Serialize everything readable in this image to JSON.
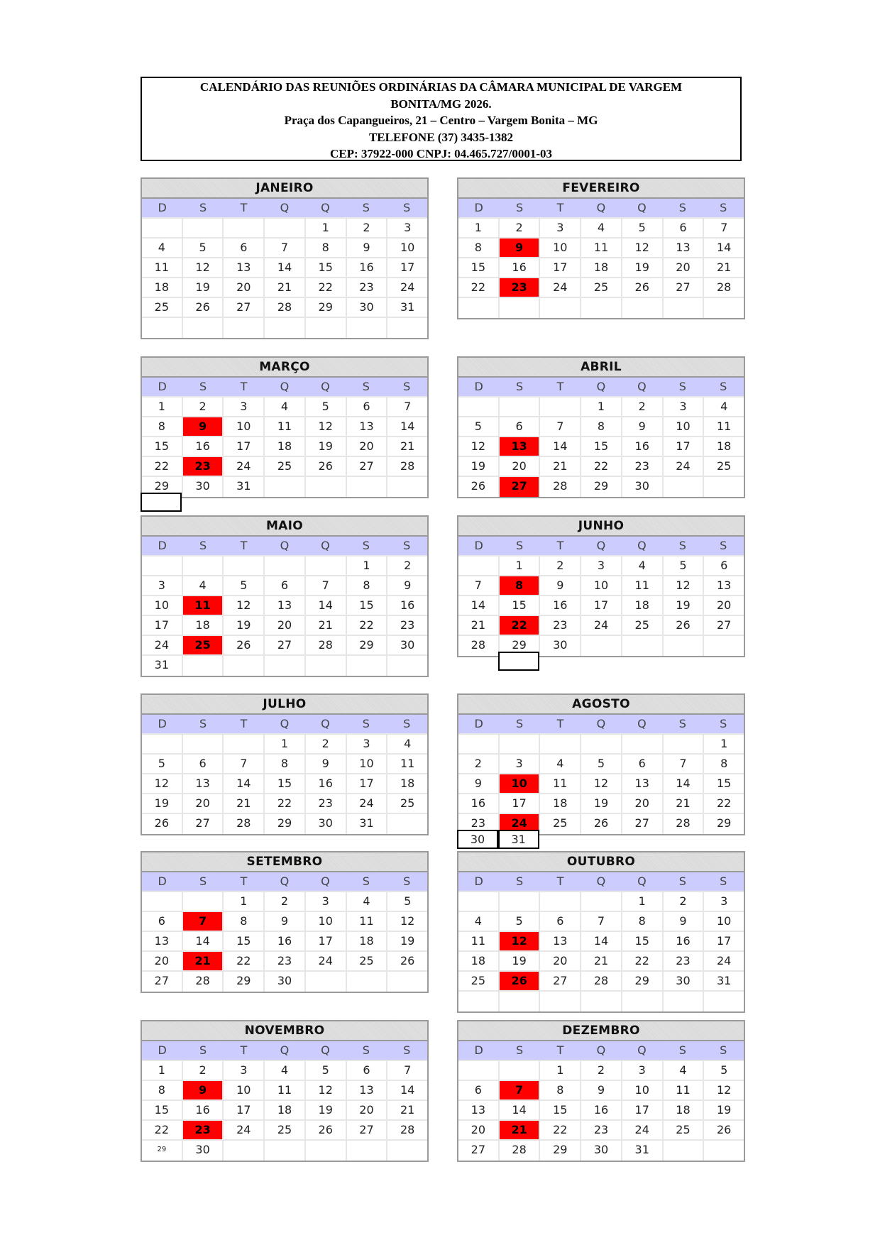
{
  "header": {
    "line1": "CALENDÁRIO DAS REUNIÕES ORDINÁRIAS DA CÂMARA MUNICIPAL DE VARGEM",
    "line2": "BONITA/MG 2026.",
    "line3": "Praça dos Capangueiros, 21 – Centro – Vargem Bonita – MG",
    "line4": "TELEFONE (37) 3435-1382",
    "line5": "CEP: 37922-000 CNPJ: 04.465.727/0001-03"
  },
  "weekdays": [
    "D",
    "S",
    "T",
    "Q",
    "Q",
    "S",
    "S"
  ],
  "colors": {
    "highlight": "#ff0000",
    "weekday_header": "#ccccff",
    "title_bg": "#dcdcdc"
  },
  "months": [
    {
      "name": "JANEIRO",
      "highlight": [],
      "weeks": [
        [
          "",
          "",
          "",
          "",
          "1",
          "2",
          "3"
        ],
        [
          "4",
          "5",
          "6",
          "7",
          "8",
          "9",
          "10"
        ],
        [
          "11",
          "12",
          "13",
          "14",
          "15",
          "16",
          "17"
        ],
        [
          "18",
          "19",
          "20",
          "21",
          "22",
          "23",
          "24"
        ],
        [
          "25",
          "26",
          "27",
          "28",
          "29",
          "30",
          "31"
        ],
        [
          "",
          "",
          "",
          "",
          "",
          "",
          ""
        ]
      ]
    },
    {
      "name": "FEVEREIRO",
      "highlight": [
        "9",
        "23"
      ],
      "weeks": [
        [
          "1",
          "2",
          "3",
          "4",
          "5",
          "6",
          "7"
        ],
        [
          "8",
          "9",
          "10",
          "11",
          "12",
          "13",
          "14"
        ],
        [
          "15",
          "16",
          "17",
          "18",
          "19",
          "20",
          "21"
        ],
        [
          "22",
          "23",
          "24",
          "25",
          "26",
          "27",
          "28"
        ],
        [
          "",
          "",
          "",
          "",
          "",
          "",
          ""
        ]
      ]
    },
    {
      "name": "MARÇO",
      "highlight": [
        "9",
        "23"
      ],
      "weeks": [
        [
          "1",
          "2",
          "3",
          "4",
          "5",
          "6",
          "7"
        ],
        [
          "8",
          "9",
          "10",
          "11",
          "12",
          "13",
          "14"
        ],
        [
          "15",
          "16",
          "17",
          "18",
          "19",
          "20",
          "21"
        ],
        [
          "22",
          "23",
          "24",
          "25",
          "26",
          "27",
          "28"
        ],
        [
          "29",
          "30",
          "31",
          "",
          "",
          "",
          ""
        ]
      ],
      "overflow": [
        {
          "col": 0,
          "text": ""
        }
      ]
    },
    {
      "name": "ABRIL",
      "highlight": [
        "13",
        "27"
      ],
      "weeks": [
        [
          "",
          "",
          "",
          "1",
          "2",
          "3",
          "4"
        ],
        [
          "5",
          "6",
          "7",
          "8",
          "9",
          "10",
          "11"
        ],
        [
          "12",
          "13",
          "14",
          "15",
          "16",
          "17",
          "18"
        ],
        [
          "19",
          "20",
          "21",
          "22",
          "23",
          "24",
          "25"
        ],
        [
          "26",
          "27",
          "28",
          "29",
          "30",
          "",
          ""
        ]
      ]
    },
    {
      "name": "MAIO",
      "highlight": [
        "11",
        "25"
      ],
      "weeks": [
        [
          "",
          "",
          "",
          "",
          "",
          "1",
          "2"
        ],
        [
          "3",
          "4",
          "5",
          "6",
          "7",
          "8",
          "9"
        ],
        [
          "10",
          "11",
          "12",
          "13",
          "14",
          "15",
          "16"
        ],
        [
          "17",
          "18",
          "19",
          "20",
          "21",
          "22",
          "23"
        ],
        [
          "24",
          "25",
          "26",
          "27",
          "28",
          "29",
          "30"
        ],
        [
          "31",
          "",
          "",
          "",
          "",
          "",
          ""
        ]
      ]
    },
    {
      "name": "JUNHO",
      "highlight": [
        "8",
        "22"
      ],
      "weeks": [
        [
          "",
          "1",
          "2",
          "3",
          "4",
          "5",
          "6"
        ],
        [
          "7",
          "8",
          "9",
          "10",
          "11",
          "12",
          "13"
        ],
        [
          "14",
          "15",
          "16",
          "17",
          "18",
          "19",
          "20"
        ],
        [
          "21",
          "22",
          "23",
          "24",
          "25",
          "26",
          "27"
        ],
        [
          "28",
          "29",
          "30",
          "",
          "",
          "",
          ""
        ]
      ],
      "overflow": [
        {
          "col": 1,
          "text": ""
        }
      ]
    },
    {
      "name": "JULHO",
      "highlight": [],
      "weeks": [
        [
          "",
          "",
          "",
          "1",
          "2",
          "3",
          "4"
        ],
        [
          "5",
          "6",
          "7",
          "8",
          "9",
          "10",
          "11"
        ],
        [
          "12",
          "13",
          "14",
          "15",
          "16",
          "17",
          "18"
        ],
        [
          "19",
          "20",
          "21",
          "22",
          "23",
          "24",
          "25"
        ],
        [
          "26",
          "27",
          "28",
          "29",
          "30",
          "31",
          ""
        ]
      ]
    },
    {
      "name": "AGOSTO",
      "highlight": [
        "10",
        "24"
      ],
      "weeks": [
        [
          "",
          "",
          "",
          "",
          "",
          "",
          "1"
        ],
        [
          "2",
          "3",
          "4",
          "5",
          "6",
          "7",
          "8"
        ],
        [
          "9",
          "10",
          "11",
          "12",
          "13",
          "14",
          "15"
        ],
        [
          "16",
          "17",
          "18",
          "19",
          "20",
          "21",
          "22"
        ],
        [
          "23",
          "24",
          "25",
          "26",
          "27",
          "28",
          "29"
        ]
      ],
      "overflow": [
        {
          "col": 0,
          "text": "30"
        },
        {
          "col": 1,
          "text": "31"
        }
      ]
    },
    {
      "name": "SETEMBRO",
      "highlight": [
        "7",
        "21"
      ],
      "weeks": [
        [
          "",
          "",
          "1",
          "2",
          "3",
          "4",
          "5"
        ],
        [
          "6",
          "7",
          "8",
          "9",
          "10",
          "11",
          "12"
        ],
        [
          "13",
          "14",
          "15",
          "16",
          "17",
          "18",
          "19"
        ],
        [
          "20",
          "21",
          "22",
          "23",
          "24",
          "25",
          "26"
        ],
        [
          "27",
          "28",
          "29",
          "30",
          "",
          "",
          ""
        ]
      ]
    },
    {
      "name": "OUTUBRO",
      "highlight": [
        "12",
        "26"
      ],
      "weeks": [
        [
          "",
          "",
          "",
          "",
          "1",
          "2",
          "3"
        ],
        [
          "4",
          "5",
          "6",
          "7",
          "8",
          "9",
          "10"
        ],
        [
          "11",
          "12",
          "13",
          "14",
          "15",
          "16",
          "17"
        ],
        [
          "18",
          "19",
          "20",
          "21",
          "22",
          "23",
          "24"
        ],
        [
          "25",
          "26",
          "27",
          "28",
          "29",
          "30",
          "31"
        ],
        [
          "",
          "",
          "",
          "",
          "",
          "",
          ""
        ]
      ]
    },
    {
      "name": "NOVEMBRO",
      "highlight": [
        "9",
        "23"
      ],
      "weeks": [
        [
          "1",
          "2",
          "3",
          "4",
          "5",
          "6",
          "7"
        ],
        [
          "8",
          "9",
          "10",
          "11",
          "12",
          "13",
          "14"
        ],
        [
          "15",
          "16",
          "17",
          "18",
          "19",
          "20",
          "21"
        ],
        [
          "22",
          "23",
          "24",
          "25",
          "26",
          "27",
          "28"
        ],
        [
          "29",
          "30",
          "",
          "",
          "",
          "",
          ""
        ]
      ]
    },
    {
      "name": "DEZEMBRO",
      "highlight": [
        "7",
        "21"
      ],
      "weeks": [
        [
          "",
          "",
          "1",
          "2",
          "3",
          "4",
          "5"
        ],
        [
          "6",
          "7",
          "8",
          "9",
          "10",
          "11",
          "12"
        ],
        [
          "13",
          "14",
          "15",
          "16",
          "17",
          "18",
          "19"
        ],
        [
          "20",
          "21",
          "22",
          "23",
          "24",
          "25",
          "26"
        ],
        [
          "27",
          "28",
          "29",
          "30",
          "31",
          "",
          ""
        ]
      ]
    }
  ]
}
